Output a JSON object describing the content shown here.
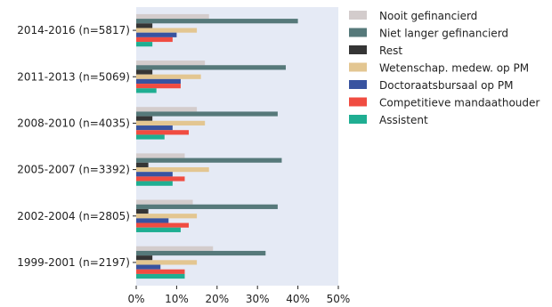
{
  "chart_data": {
    "type": "bar",
    "orientation": "horizontal",
    "categories": [
      "2014-2016 (n=5817)",
      "2011-2013 (n=5069)",
      "2008-2010 (n=4035)",
      "2005-2007 (n=3392)",
      "2002-2004 (n=2805)",
      "1999-2001 (n=2197)"
    ],
    "series": [
      {
        "name": "Nooit gefinancierd",
        "color": "#d3cccc",
        "values": [
          18,
          17,
          15,
          12,
          14,
          19
        ]
      },
      {
        "name": "Niet langer gefinancierd",
        "color": "#56797a",
        "values": [
          40,
          37,
          35,
          36,
          35,
          32
        ]
      },
      {
        "name": "Rest",
        "color": "#353535",
        "values": [
          4,
          4,
          4,
          3,
          3,
          4
        ]
      },
      {
        "name": "Wetenschap. medew. op PM",
        "color": "#e3c691",
        "values": [
          15,
          16,
          17,
          18,
          15,
          15
        ]
      },
      {
        "name": "Doctoraatsbursaal op PM",
        "color": "#3853a0",
        "values": [
          10,
          11,
          9,
          9,
          8,
          6
        ]
      },
      {
        "name": "Competitieve mandaathouder",
        "color": "#f04c41",
        "values": [
          9,
          11,
          13,
          12,
          13,
          12
        ]
      },
      {
        "name": "Assistent",
        "color": "#1fae92",
        "values": [
          4,
          5,
          7,
          9,
          11,
          12
        ]
      }
    ],
    "x_ticks": [
      "0%",
      "10%",
      "20%",
      "30%",
      "40%",
      "50%"
    ],
    "xlim": [
      0,
      50
    ],
    "title": "",
    "xlabel": "",
    "ylabel": "",
    "legend_position": "right",
    "grid": false,
    "plot_background": "#e5eaf5"
  }
}
